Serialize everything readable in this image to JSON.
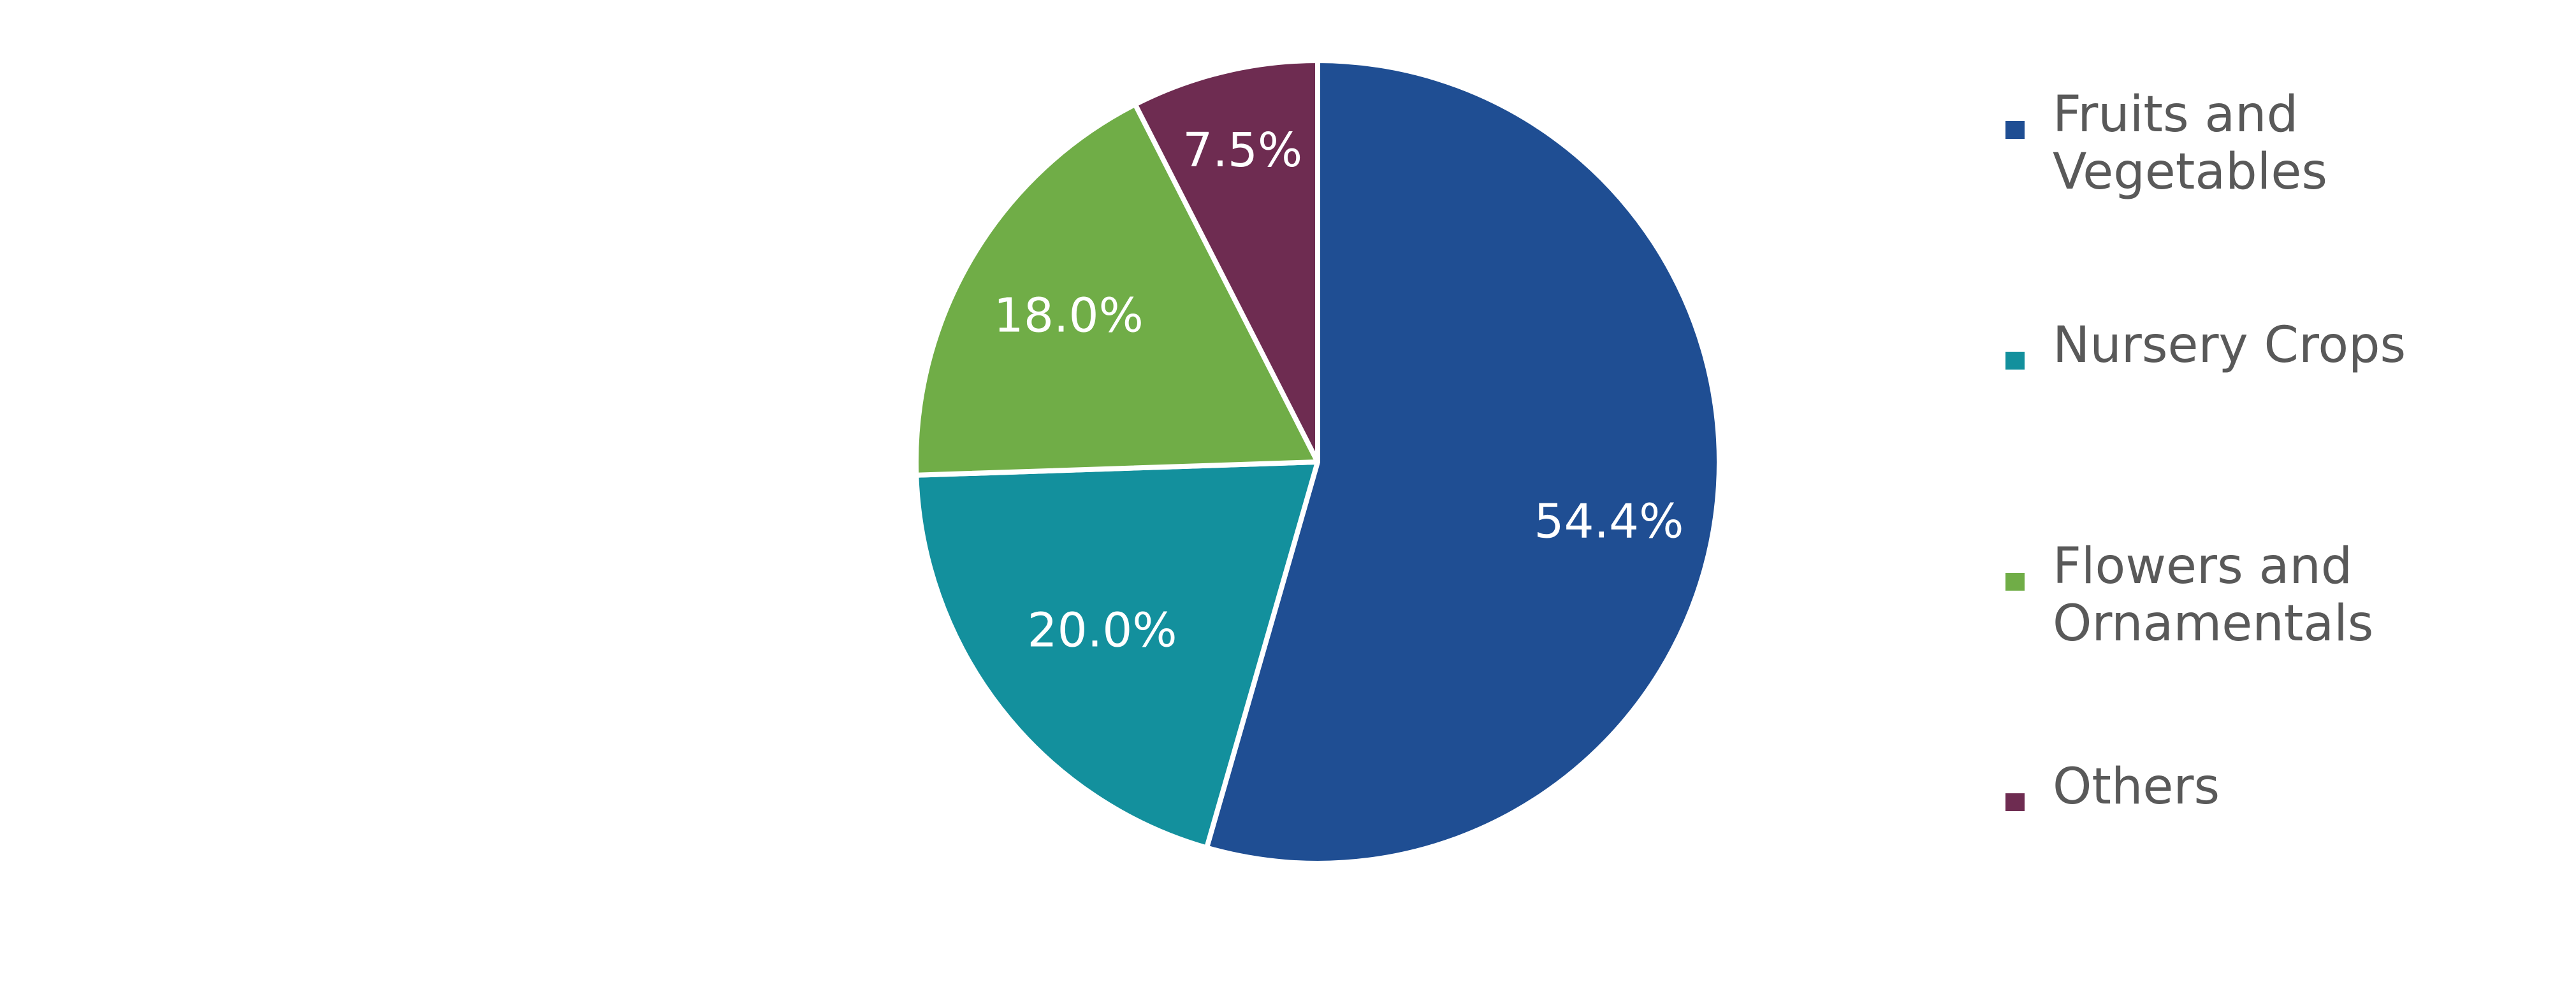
{
  "chart_data": {
    "type": "pie",
    "start_angle": "top, clockwise",
    "slices": [
      {
        "label": "Fruits and Vegetables",
        "value": 54.4,
        "data_label": "54.4%",
        "color": "#1F4E93"
      },
      {
        "label": "Nursery Crops",
        "value": 20.0,
        "data_label": "20.0%",
        "color": "#13909D"
      },
      {
        "label": "Flowers and Ornamentals",
        "value": 18.0,
        "data_label": "18.0%",
        "color": "#70AD47"
      },
      {
        "label": "Others",
        "value": 7.5,
        "data_label": "7.5%",
        "color": "#6E2C51"
      }
    ],
    "legend_placement": "right",
    "data_label_color": "#FFFFFF",
    "legend_text_color": "#595959"
  }
}
